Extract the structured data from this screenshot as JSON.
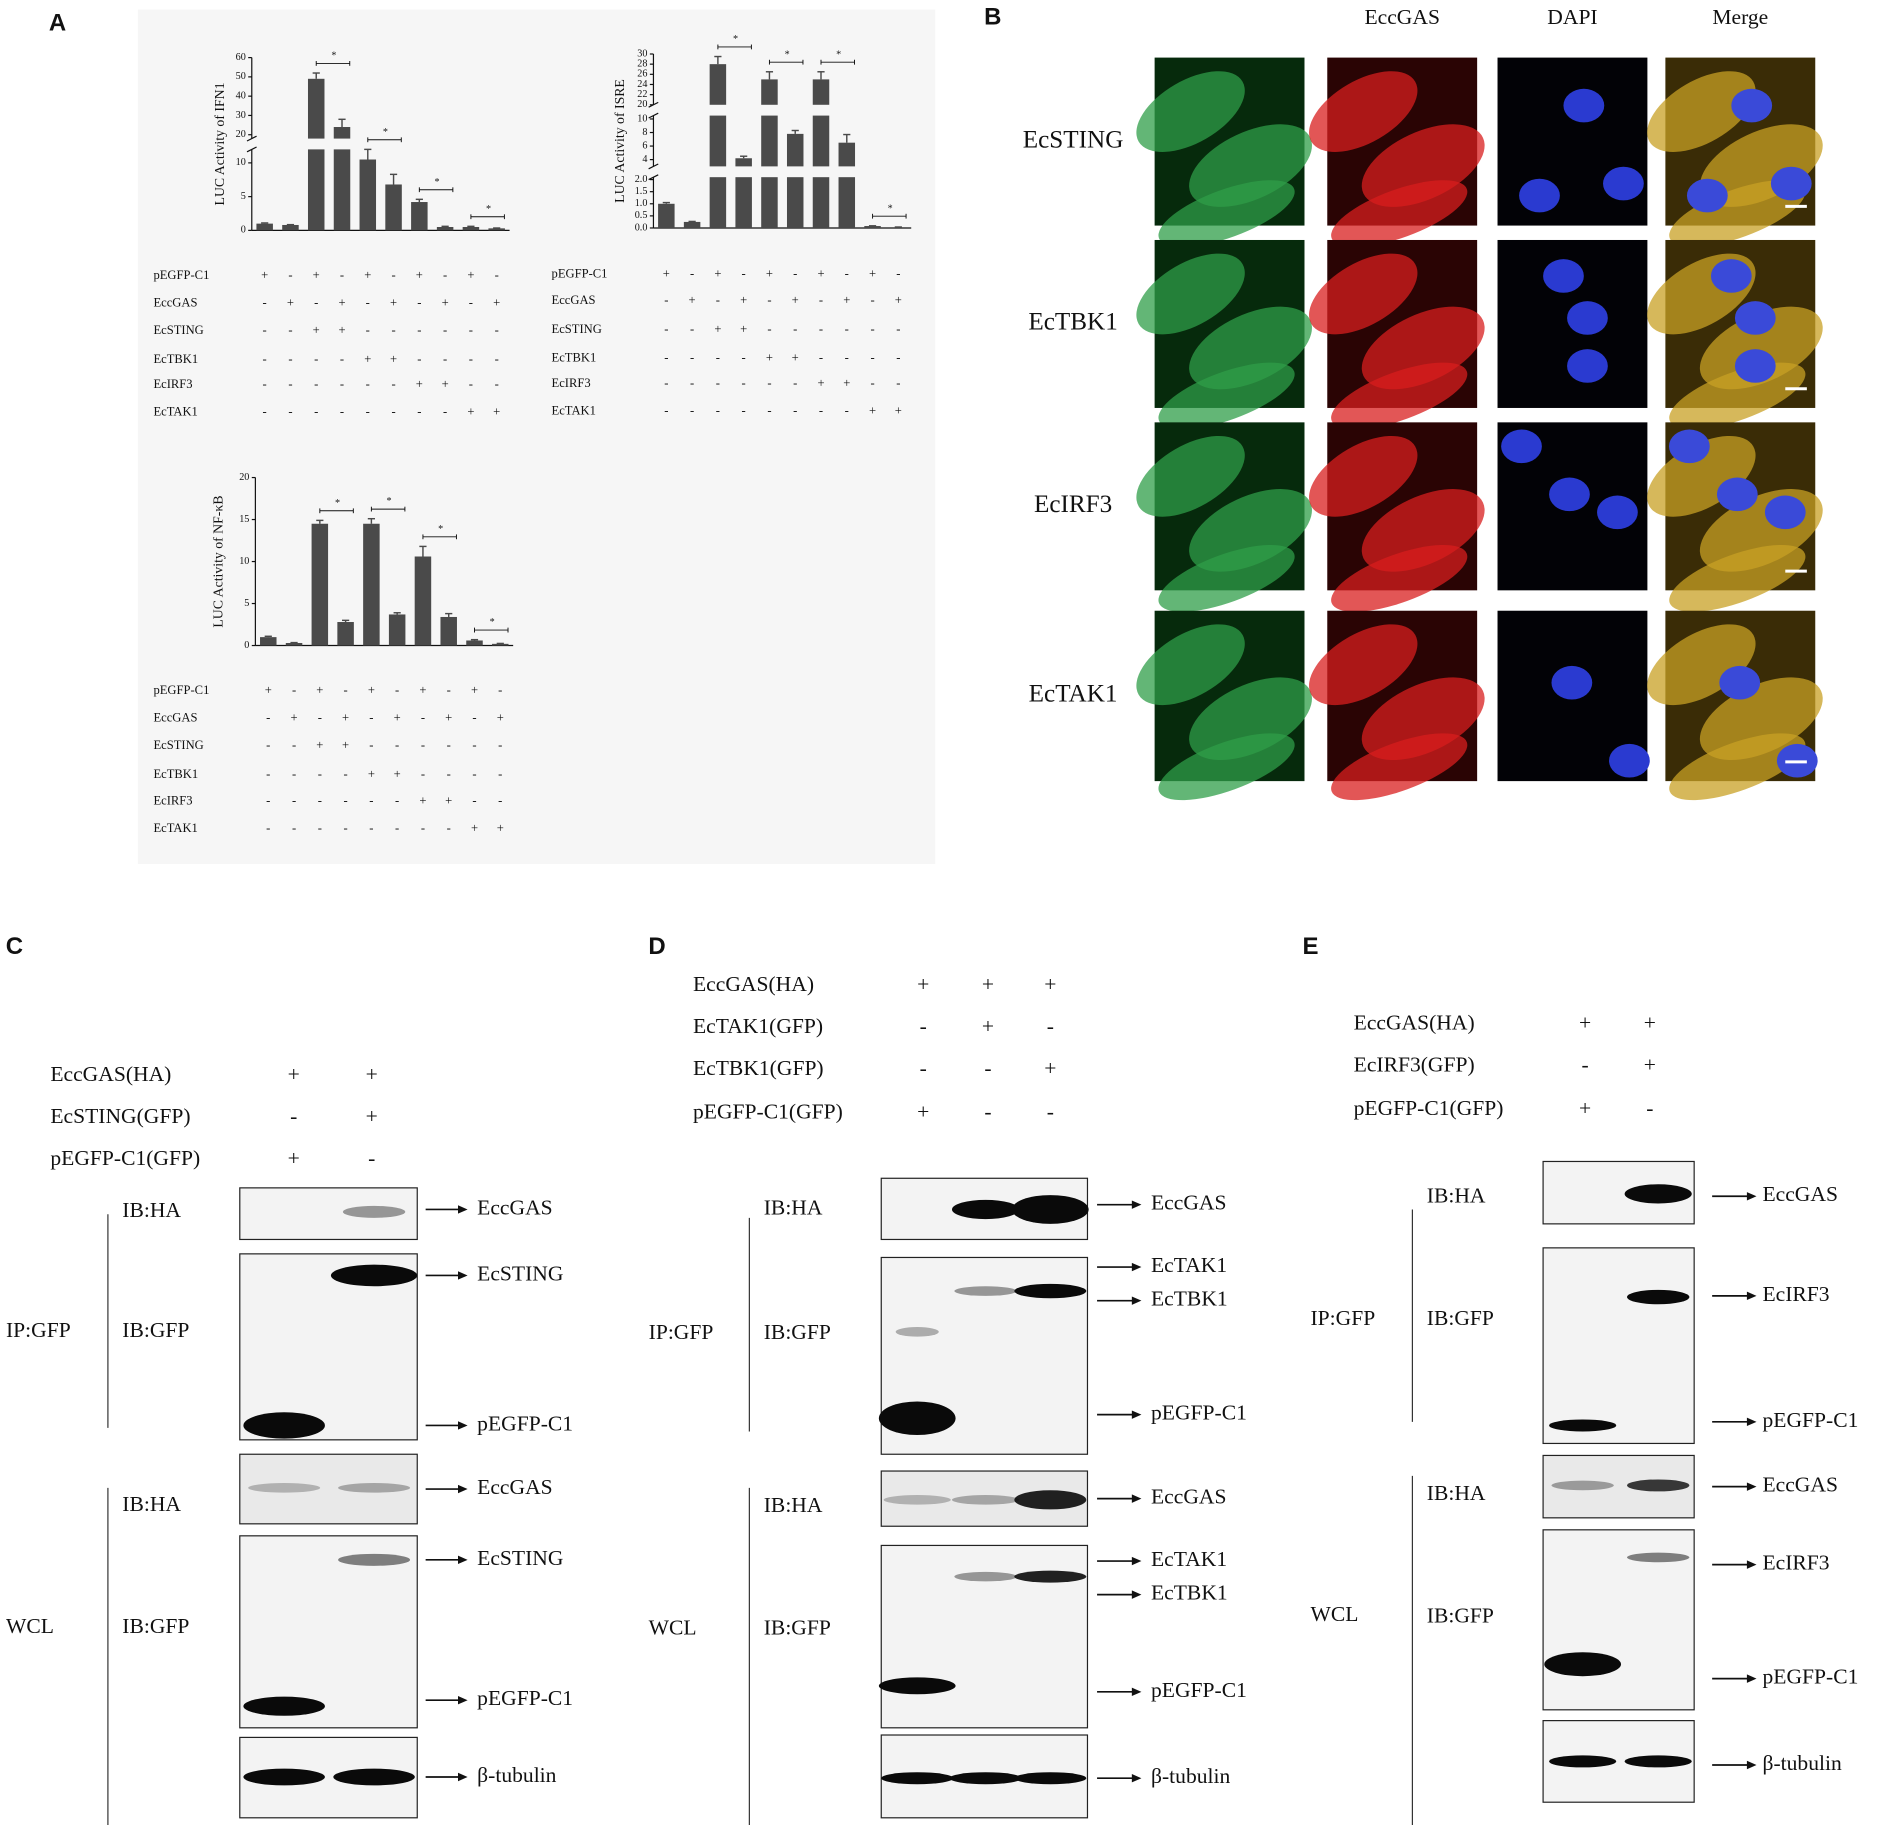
{
  "panel_labels": [
    "A",
    "B",
    "C",
    "D",
    "E"
  ],
  "treatment_table": {
    "rows": [
      {
        "label": "pEGFP-C1",
        "signs": [
          "+",
          "-",
          "+",
          "-",
          "+",
          "-",
          "+",
          "-",
          "+",
          "-"
        ]
      },
      {
        "label": "EccGAS",
        "signs": [
          "-",
          "+",
          "-",
          "+",
          "-",
          "+",
          "-",
          "+",
          "-",
          "+"
        ]
      },
      {
        "label": "EcSTING",
        "signs": [
          "-",
          "-",
          "+",
          "+",
          "-",
          "-",
          "-",
          "-",
          "-",
          "-"
        ]
      },
      {
        "label": "EcTBK1",
        "signs": [
          "-",
          "-",
          "-",
          "-",
          "+",
          "+",
          "-",
          "-",
          "-",
          "-"
        ]
      },
      {
        "label": "EcIRF3",
        "signs": [
          "-",
          "-",
          "-",
          "-",
          "-",
          "-",
          "+",
          "+",
          "-",
          "-"
        ]
      },
      {
        "label": "EcTAK1",
        "signs": [
          "-",
          "-",
          "-",
          "-",
          "-",
          "-",
          "-",
          "-",
          "+",
          "+"
        ]
      }
    ]
  },
  "chart_data": [
    {
      "type": "bar",
      "ylabel": "LUC Activity of IFN1",
      "color": "#4a4a4a",
      "values": [
        1.0,
        0.8,
        49,
        24,
        10.5,
        6.8,
        4.2,
        0.5,
        0.5,
        0.3
      ],
      "errors": [
        0.1,
        0.05,
        3,
        4,
        2,
        1.5,
        0.4,
        0.1,
        0.1,
        0.05
      ],
      "ylim": [
        0,
        60
      ],
      "ysegments": [
        [
          0,
          12
        ],
        [
          18,
          60
        ]
      ],
      "yticks": [
        0,
        5,
        10,
        20,
        30,
        40,
        50,
        60
      ],
      "annotations": [
        "*",
        "*",
        "*",
        "*"
      ]
    },
    {
      "type": "bar",
      "ylabel": "LUC Activity of ISRE",
      "color": "#4a4a4a",
      "values": [
        1.0,
        0.25,
        28,
        4.2,
        25,
        7.8,
        25,
        6.5,
        0.08,
        0.03
      ],
      "errors": [
        0.05,
        0.02,
        1.5,
        0.3,
        1.5,
        0.5,
        1.5,
        1.2,
        0.01,
        0.01
      ],
      "ylim": [
        0,
        30
      ],
      "ysegments": [
        [
          0,
          2.1
        ],
        [
          3,
          10.5
        ],
        [
          20,
          30
        ]
      ],
      "yticks": [
        {
          "value": 0,
          "label": "0.0"
        },
        0.5,
        {
          "value": 1,
          "label": "1.0"
        },
        1.5,
        {
          "value": 2,
          "label": "2.0"
        },
        4,
        6,
        8,
        10,
        20,
        22,
        24,
        26,
        28,
        30
      ],
      "annotations": [
        "*",
        "*",
        "*",
        "*"
      ]
    },
    {
      "type": "bar",
      "ylabel": "LUC Activity of NF-κB",
      "color": "#4a4a4a",
      "values": [
        1.0,
        0.3,
        14.5,
        2.8,
        14.5,
        3.7,
        10.6,
        3.4,
        0.6,
        0.2
      ],
      "errors": [
        0.1,
        0.05,
        0.4,
        0.2,
        0.6,
        0.2,
        1.2,
        0.4,
        0.1,
        0.05
      ],
      "ylim": [
        0,
        20
      ],
      "yticks": [
        0,
        5,
        10,
        15,
        20
      ],
      "annotations": [
        "*",
        "*",
        "*",
        "*"
      ]
    }
  ],
  "panel_B": {
    "columns": [
      "EccGAS",
      "DAPI",
      "Merge"
    ],
    "rows": [
      "EcSTING",
      "EcTBK1",
      "EcIRF3",
      "EcTAK1"
    ]
  },
  "panel_C": {
    "conditions": [
      {
        "label": "EccGAS(HA)",
        "signs": [
          "+",
          "+"
        ]
      },
      {
        "label": "EcSTING(GFP)",
        "signs": [
          "-",
          "+"
        ]
      },
      {
        "label": "pEGFP-C1(GFP)",
        "signs": [
          "+",
          "-"
        ]
      }
    ],
    "groups": [
      "IP:GFP",
      "WCL"
    ],
    "blots": [
      {
        "antibody": "IB:HA",
        "bands": [
          "EccGAS"
        ]
      },
      {
        "antibody": "IB:GFP",
        "bands": [
          "EcSTING",
          "pEGFP-C1"
        ]
      },
      {
        "antibody": "IB:HA",
        "bands": [
          "EccGAS"
        ]
      },
      {
        "antibody": "IB:GFP",
        "bands": [
          "EcSTING",
          "pEGFP-C1"
        ]
      },
      {
        "bands": [
          "β-tubulin"
        ]
      }
    ]
  },
  "panel_D": {
    "conditions": [
      {
        "label": "EccGAS(HA)",
        "signs": [
          "+",
          "+",
          "+"
        ]
      },
      {
        "label": "EcTAK1(GFP)",
        "signs": [
          "-",
          "+",
          "-"
        ]
      },
      {
        "label": "EcTBK1(GFP)",
        "signs": [
          "-",
          "-",
          "+"
        ]
      },
      {
        "label": "pEGFP-C1(GFP)",
        "signs": [
          "+",
          "-",
          "-"
        ]
      }
    ],
    "groups": [
      "IP:GFP",
      "WCL"
    ],
    "blots": [
      {
        "antibody": "IB:HA",
        "bands": [
          "EccGAS"
        ]
      },
      {
        "antibody": "IB:GFP",
        "bands": [
          "EcTAK1",
          "EcTBK1",
          "pEGFP-C1"
        ]
      },
      {
        "antibody": "IB:HA",
        "bands": [
          "EccGAS"
        ]
      },
      {
        "antibody": "IB:GFP",
        "bands": [
          "EcTAK1",
          "EcTBK1",
          "pEGFP-C1"
        ]
      },
      {
        "bands": [
          "β-tubulin"
        ]
      }
    ]
  },
  "panel_E": {
    "conditions": [
      {
        "label": "EccGAS(HA)",
        "signs": [
          "+",
          "+"
        ]
      },
      {
        "label": "EcIRF3(GFP)",
        "signs": [
          "-",
          "+"
        ]
      },
      {
        "label": "pEGFP-C1(GFP)",
        "signs": [
          "+",
          "-"
        ]
      }
    ],
    "groups": [
      "IP:GFP",
      "WCL"
    ],
    "blots": [
      {
        "antibody": "IB:HA",
        "bands": [
          "EccGAS"
        ]
      },
      {
        "antibody": "IB:GFP",
        "bands": [
          "EcIRF3",
          "pEGFP-C1"
        ]
      },
      {
        "antibody": "IB:HA",
        "bands": [
          "EccGAS"
        ]
      },
      {
        "antibody": "IB:GFP",
        "bands": [
          "EcIRF3",
          "pEGFP-C1"
        ]
      },
      {
        "bands": [
          "β-tubulin"
        ]
      }
    ]
  }
}
